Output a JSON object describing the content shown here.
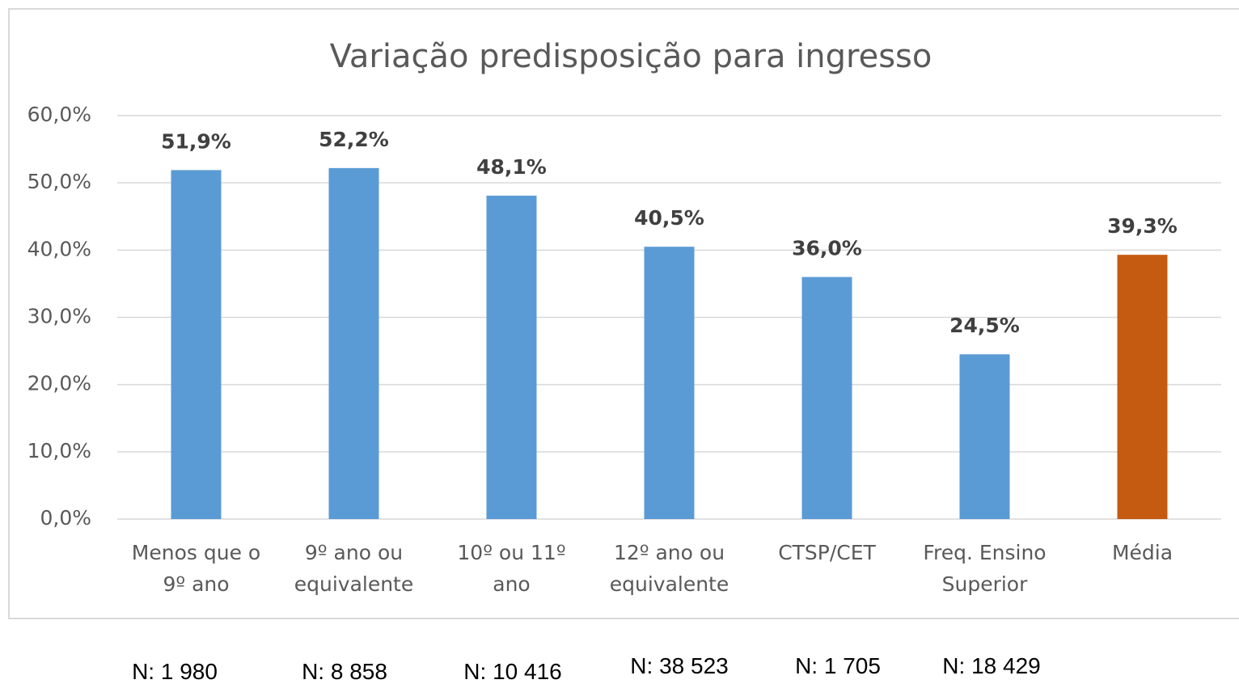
{
  "chart_data": {
    "type": "bar",
    "title": "Variação predisposição para ingresso",
    "categories": [
      "Menos que o\n9º ano",
      "9º ano ou\nequivalente",
      "10º ou 11º\nano",
      "12º ano ou\nequivalente",
      "CTSP/CET",
      "Freq. Ensino\nSuperior",
      "Média"
    ],
    "values": [
      51.9,
      52.2,
      48.1,
      40.5,
      36.0,
      24.5,
      39.3
    ],
    "value_labels": [
      "51,9%",
      "52,2%",
      "48,1%",
      "40,5%",
      "36,0%",
      "24,5%",
      "39,3%"
    ],
    "colors": [
      "#5b9bd5",
      "#5b9bd5",
      "#5b9bd5",
      "#5b9bd5",
      "#5b9bd5",
      "#5b9bd5",
      "#c55a11"
    ],
    "ylim": [
      0,
      60
    ],
    "yticks": [
      {
        "value": 0,
        "label": "0,0%"
      },
      {
        "value": 10,
        "label": "10,0%"
      },
      {
        "value": 20,
        "label": "20,0%"
      },
      {
        "value": 30,
        "label": "30,0%"
      },
      {
        "value": 40,
        "label": "40,0%"
      },
      {
        "value": 50,
        "label": "50,0%"
      },
      {
        "value": 60,
        "label": "60,0%"
      }
    ],
    "grid": true,
    "annotations": [
      "N: 1 980",
      "N: 8 858",
      "N: 10 416",
      "N: 38 523",
      "N: 1 705",
      "N: 18 429"
    ]
  }
}
